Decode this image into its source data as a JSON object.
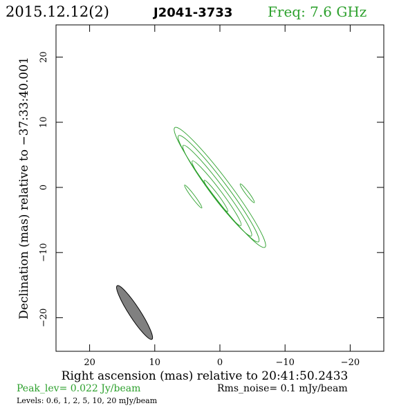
{
  "header": {
    "date": "2015.12.12(2)",
    "source": "J2041-3733",
    "freq": "Freq: 7.6 GHz"
  },
  "footer": {
    "peak": "Peak_lev=  0.022 Jy/beam",
    "rms": "Rms_noise=   0.1 mJy/beam",
    "levels": "Levels: 0.6,    1,    2,    5,   10,   20  mJy/beam"
  },
  "colors": {
    "contour": "#2ca02c",
    "beam_fill": "#808080",
    "frame": "#000000"
  },
  "chart_data": {
    "type": "contour",
    "xlabel": "Right ascension (mas) relative to 20:41:50.2433",
    "ylabel": "Declination (mas) relative to −37:33:40.001",
    "xlim": [
      25,
      -25
    ],
    "ylim": [
      -25,
      25
    ],
    "xticks": [
      20,
      10,
      0,
      -10,
      -20
    ],
    "yticks": [
      20,
      10,
      0,
      -10,
      -20
    ],
    "xtick_labels": [
      "20",
      "10",
      "0",
      "−10",
      "−20"
    ],
    "ytick_labels": [
      "20",
      "10",
      "0",
      "−10",
      "−20"
    ],
    "x_reversed": true,
    "contour_levels_mJy": [
      0.6,
      1,
      2,
      5,
      10,
      20
    ],
    "contours": [
      {
        "level": 0.6,
        "center": [
          0,
          0
        ],
        "semi_major": 11.5,
        "semi_minor": 1.5,
        "pa_deg": -37
      },
      {
        "level": 1,
        "center": [
          0.2,
          -0.2
        ],
        "semi_major": 10.2,
        "semi_minor": 1.25,
        "pa_deg": -37
      },
      {
        "level": 2,
        "center": [
          0.4,
          -0.5
        ],
        "semi_major": 8.7,
        "semi_minor": 1.0,
        "pa_deg": -37
      },
      {
        "level": 5,
        "center": [
          0.5,
          -0.9
        ],
        "semi_major": 6.2,
        "semi_minor": 0.7,
        "pa_deg": -37
      },
      {
        "level": 10,
        "center": [
          0.6,
          -1.3
        ],
        "semi_major": 3.0,
        "semi_minor": 0.35,
        "pa_deg": -37
      },
      {
        "level": 0.6,
        "center": [
          4.1,
          -1.4
        ],
        "semi_major": 2.2,
        "semi_minor": 0.25,
        "pa_deg": -37
      },
      {
        "level": 0.6,
        "center": [
          -4.2,
          -0.9
        ],
        "semi_major": 1.8,
        "semi_minor": 0.25,
        "pa_deg": -37
      }
    ],
    "beam": {
      "center": [
        13.1,
        -19.2
      ],
      "semi_major": 4.9,
      "semi_minor": 0.85,
      "pa_deg": -33
    }
  }
}
